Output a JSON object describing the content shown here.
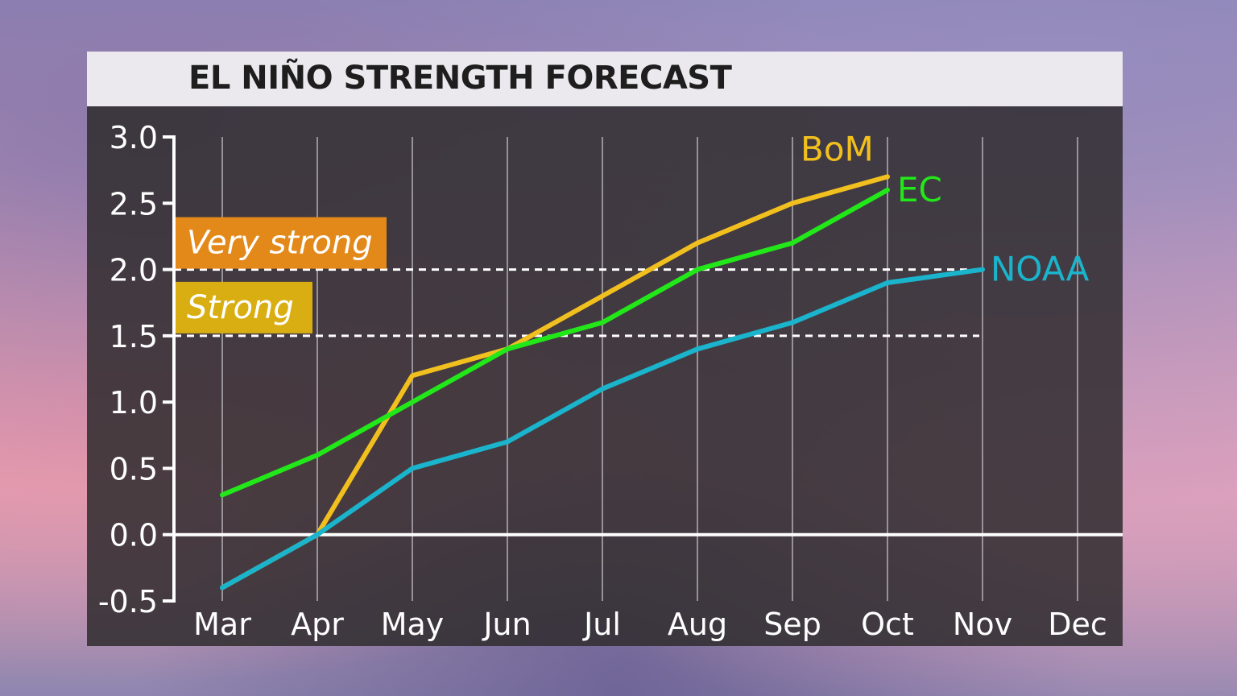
{
  "chart_data": {
    "type": "line",
    "title": "EL NIÑO STRENGTH FORECAST",
    "xlabel": "",
    "ylabel": "",
    "x": [
      "Mar",
      "Apr",
      "May",
      "Jun",
      "Jul",
      "Aug",
      "Sep",
      "Oct",
      "Nov",
      "Dec"
    ],
    "ylim": [
      -0.5,
      3.0
    ],
    "yticks": [
      "3.0",
      "2.5",
      "2.0",
      "1.5",
      "1.0",
      "0.5",
      "0.0",
      "-0.5"
    ],
    "grid": "vertical",
    "series": [
      {
        "name": "BoM",
        "color": "#f2c01e",
        "values": [
          -0.4,
          0.0,
          1.2,
          1.4,
          1.8,
          2.2,
          2.5,
          2.7,
          null,
          null
        ]
      },
      {
        "name": "EC",
        "color": "#22e81a",
        "values": [
          0.3,
          0.6,
          1.0,
          1.4,
          1.6,
          2.0,
          2.2,
          2.6,
          null,
          null
        ]
      },
      {
        "name": "NOAA",
        "color": "#1ab4cc",
        "values": [
          -0.4,
          0.0,
          0.5,
          0.7,
          1.1,
          1.4,
          1.6,
          1.9,
          2.0,
          null
        ]
      }
    ],
    "thresholds": [
      {
        "label": "Very strong",
        "value": 2.0,
        "color": "#e3891a"
      },
      {
        "label": "Strong",
        "value": 1.5,
        "color": "#d9ae12"
      }
    ]
  }
}
